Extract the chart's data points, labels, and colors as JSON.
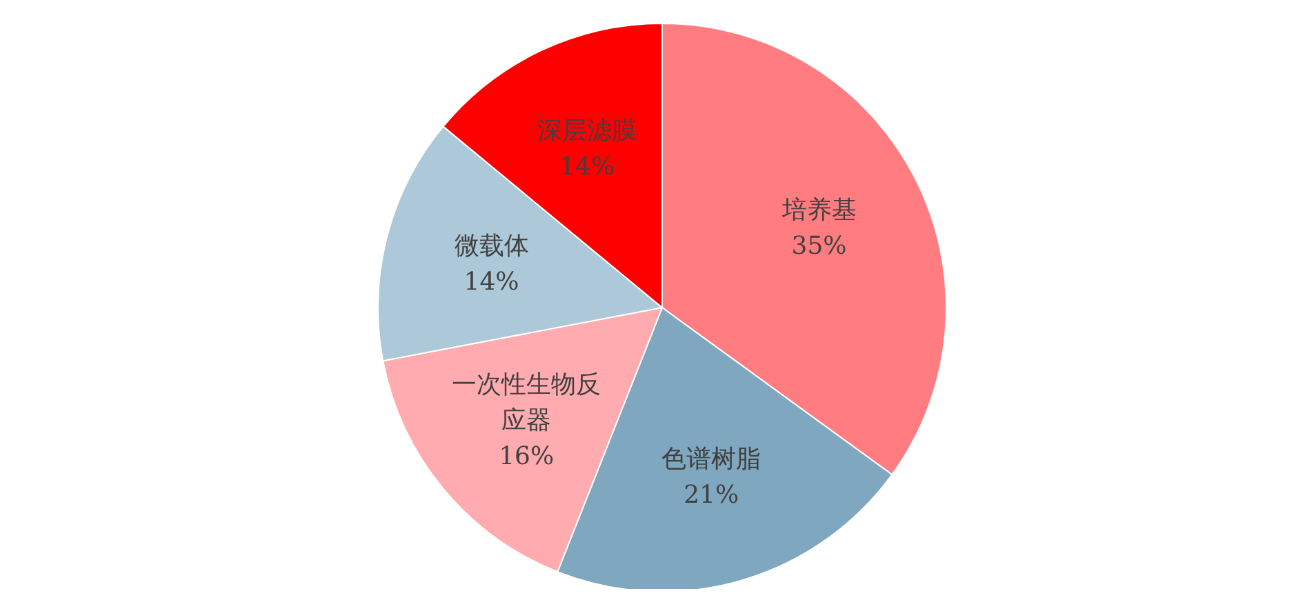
{
  "chart_data": {
    "type": "pie",
    "categories": [
      "培养基",
      "色谱树脂",
      "一次性生物反应器",
      "微载体",
      "深层滤膜"
    ],
    "values": [
      35,
      21,
      16,
      14,
      14
    ],
    "colors": [
      "#ff7c80",
      "#7fa7c0",
      "#ffabb0",
      "#adc8d8",
      "#ff0000"
    ],
    "value_labels": [
      "35%",
      "21%",
      "16%",
      "14%",
      "14%"
    ],
    "legend": false
  }
}
